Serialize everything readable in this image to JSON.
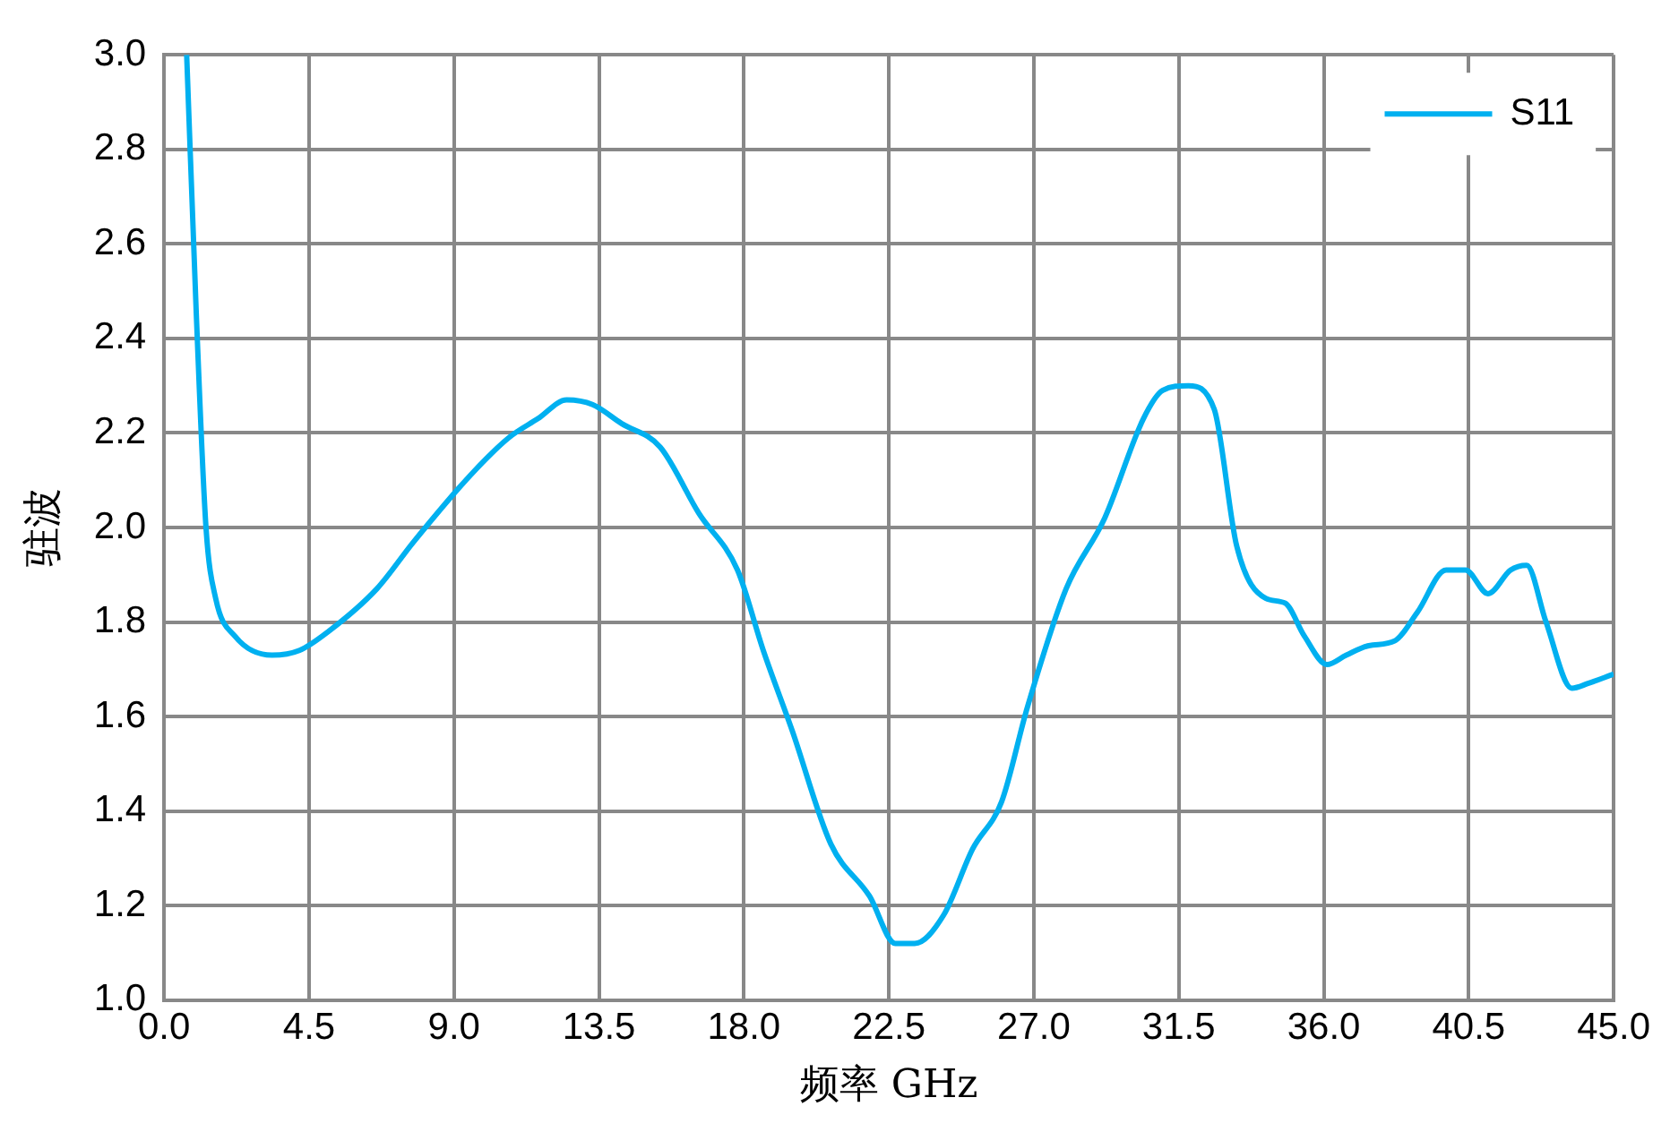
{
  "chart_data": {
    "type": "line",
    "xlabel": "频率 GHz",
    "ylabel": "驻波",
    "series": [
      {
        "name": "S11",
        "color": "#00b0f0",
        "x": [
          0.7,
          1.0,
          1.3,
          1.6,
          2.2,
          3.35,
          4.2,
          5.1,
          6.6,
          7.75,
          9.5,
          10.7,
          11.6,
          12.5,
          13.3,
          14.2,
          15.4,
          16.6,
          17.8,
          18.6,
          19.5,
          20.7,
          21.9,
          22.7,
          23.3,
          24.2,
          25.1,
          26.0,
          26.8,
          28.0,
          29.2,
          30.4,
          31.0,
          31.8,
          32.6,
          33.3,
          34.2,
          34.8,
          35.4,
          36.1,
          36.7,
          37.4,
          38.2,
          38.9,
          39.8,
          40.4,
          41.1,
          41.8,
          42.3,
          42.9,
          43.7,
          44.2,
          45.0
        ],
        "values": [
          3.0,
          2.45,
          2.0,
          1.85,
          1.77,
          1.73,
          1.74,
          1.78,
          1.87,
          1.97,
          2.11,
          2.19,
          2.23,
          2.27,
          2.26,
          2.22,
          2.17,
          2.03,
          1.91,
          1.74,
          1.57,
          1.33,
          1.22,
          1.12,
          1.12,
          1.18,
          1.32,
          1.42,
          1.62,
          1.87,
          2.02,
          2.23,
          2.29,
          2.3,
          2.25,
          1.96,
          1.85,
          1.84,
          1.77,
          1.71,
          1.73,
          1.75,
          1.76,
          1.82,
          1.91,
          1.91,
          1.86,
          1.91,
          1.92,
          1.8,
          1.66,
          1.67,
          1.69
        ]
      }
    ],
    "xlim": [
      0,
      45
    ],
    "xticks": [
      {
        "value": 0,
        "label": "0.0"
      },
      4.5,
      {
        "value": 9,
        "label": "9.0"
      },
      13.5,
      {
        "value": 18,
        "label": "18.0"
      },
      22.5,
      {
        "value": 27,
        "label": "27.0"
      },
      31.5,
      {
        "value": 36,
        "label": "36.0"
      },
      40.5,
      {
        "value": 45,
        "label": "45.0"
      }
    ],
    "ylim": [
      1,
      3
    ],
    "yticks": [
      {
        "value": 1,
        "label": "1.0"
      },
      1.2,
      1.4,
      1.6,
      1.8,
      {
        "value": 2,
        "label": "2.0"
      },
      2.2,
      2.4,
      2.6,
      2.8,
      {
        "value": 3,
        "label": "3.0"
      }
    ],
    "grid": true,
    "legend": "top right",
    "marker": "none",
    "line_style": "solid"
  }
}
